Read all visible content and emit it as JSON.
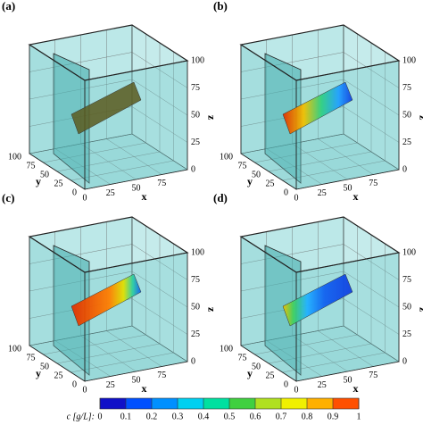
{
  "panels": [
    {
      "label": "(a)"
    },
    {
      "label": "(b)"
    },
    {
      "label": "(c)"
    },
    {
      "label": "(d)"
    }
  ],
  "axes": {
    "x_label": "x",
    "y_label": "y",
    "z_label": "z",
    "x_ticks": [
      0,
      25,
      50,
      75
    ],
    "y_ticks": [
      0,
      25,
      50,
      75,
      100
    ],
    "z_ticks": [
      0,
      25,
      50,
      75,
      100
    ]
  },
  "colorbar": {
    "label": "c [g/L]:",
    "ticks": [
      0,
      0.1,
      0.2,
      0.3,
      0.4,
      0.5,
      0.6,
      0.7,
      0.8,
      0.9,
      1
    ]
  }
}
